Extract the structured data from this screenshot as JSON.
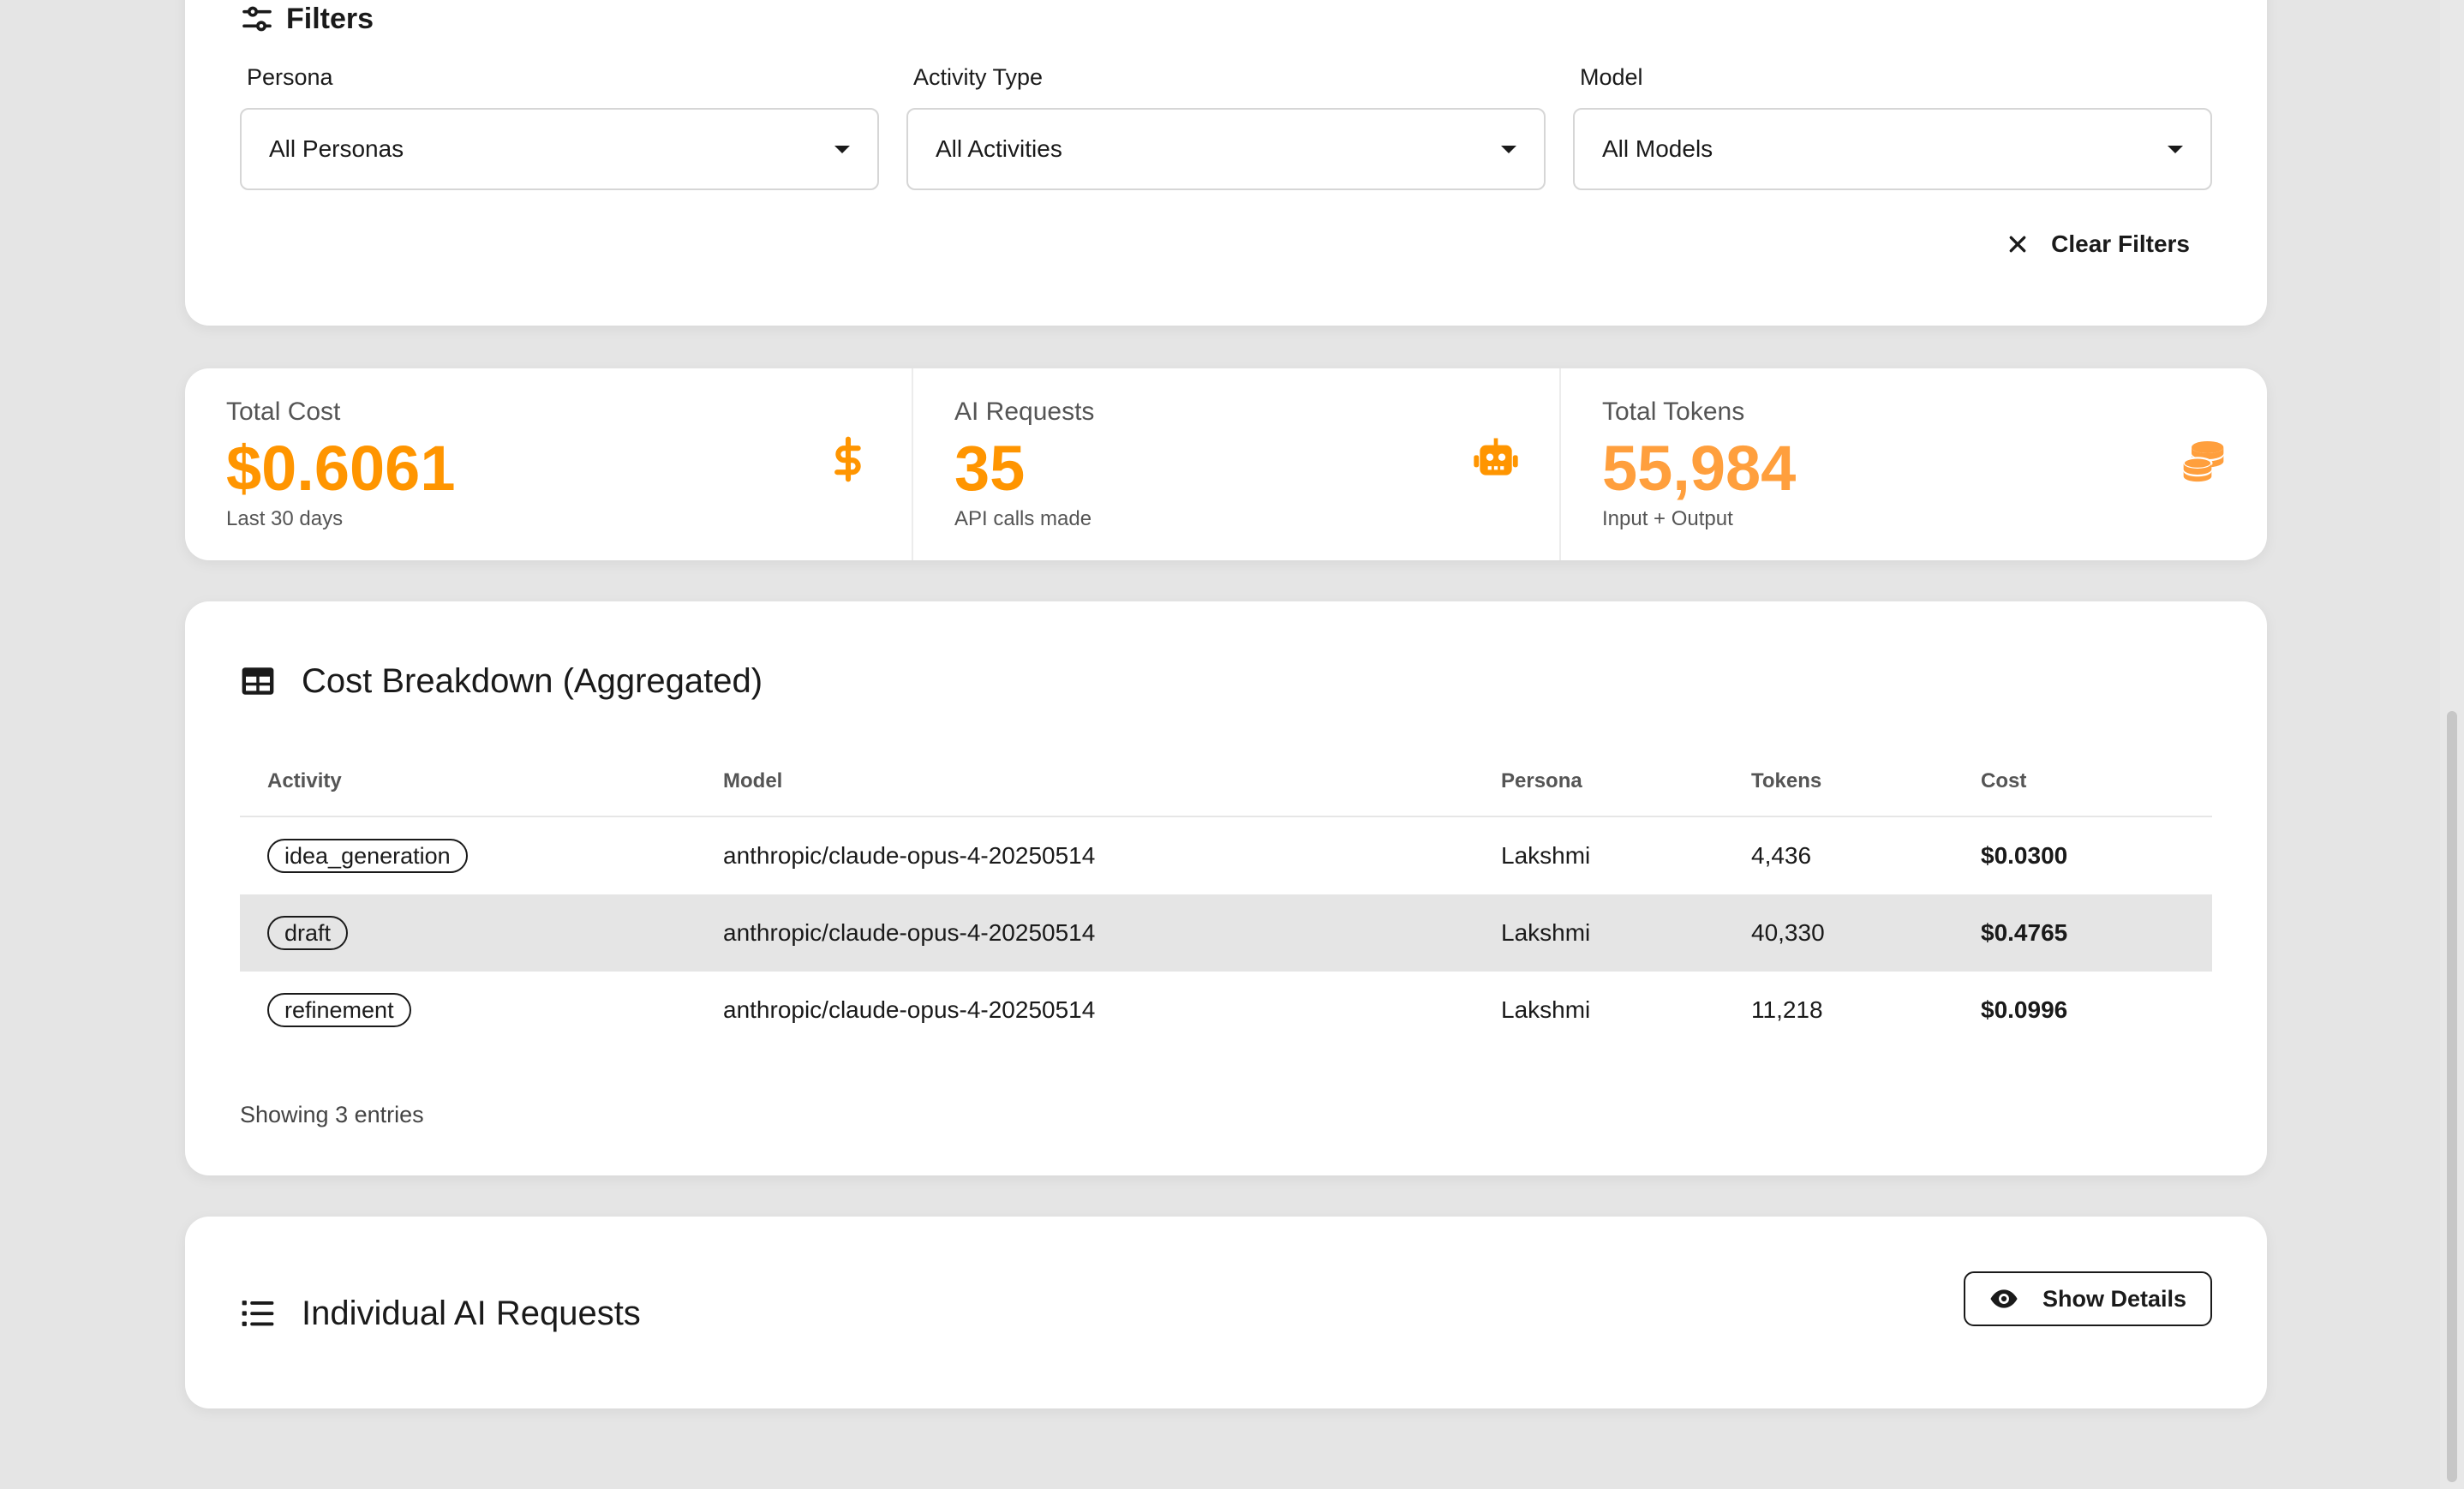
{
  "filters": {
    "title": "Filters",
    "groups": [
      {
        "label": "Persona",
        "value": "All Personas"
      },
      {
        "label": "Activity Type",
        "value": "All Activities"
      },
      {
        "label": "Model",
        "value": "All Models"
      }
    ],
    "clear_label": "Clear Filters"
  },
  "stats": [
    {
      "label": "Total Cost",
      "value": "$0.6061",
      "sub": "Last 30 days",
      "icon": "dollar-icon",
      "color": "#ff9500"
    },
    {
      "label": "AI Requests",
      "value": "35",
      "sub": "API calls made",
      "icon": "robot-icon",
      "color": "#ff9500"
    },
    {
      "label": "Total Tokens",
      "value": "55,984",
      "sub": "Input + Output",
      "icon": "coins-icon",
      "color": "#ff9f3d"
    }
  ],
  "breakdown": {
    "title": "Cost Breakdown (Aggregated)",
    "columns": [
      "Activity",
      "Model",
      "Persona",
      "Tokens",
      "Cost"
    ],
    "rows": [
      {
        "activity": "idea_generation",
        "model": "anthropic/claude-opus-4-20250514",
        "persona": "Lakshmi",
        "tokens": "4,436",
        "cost": "$0.0300"
      },
      {
        "activity": "draft",
        "model": "anthropic/claude-opus-4-20250514",
        "persona": "Lakshmi",
        "tokens": "40,330",
        "cost": "$0.4765"
      },
      {
        "activity": "refinement",
        "model": "anthropic/claude-opus-4-20250514",
        "persona": "Lakshmi",
        "tokens": "11,218",
        "cost": "$0.0996"
      }
    ],
    "footer": "Showing 3 entries"
  },
  "individual": {
    "title": "Individual AI Requests",
    "button_label": "Show Details"
  }
}
